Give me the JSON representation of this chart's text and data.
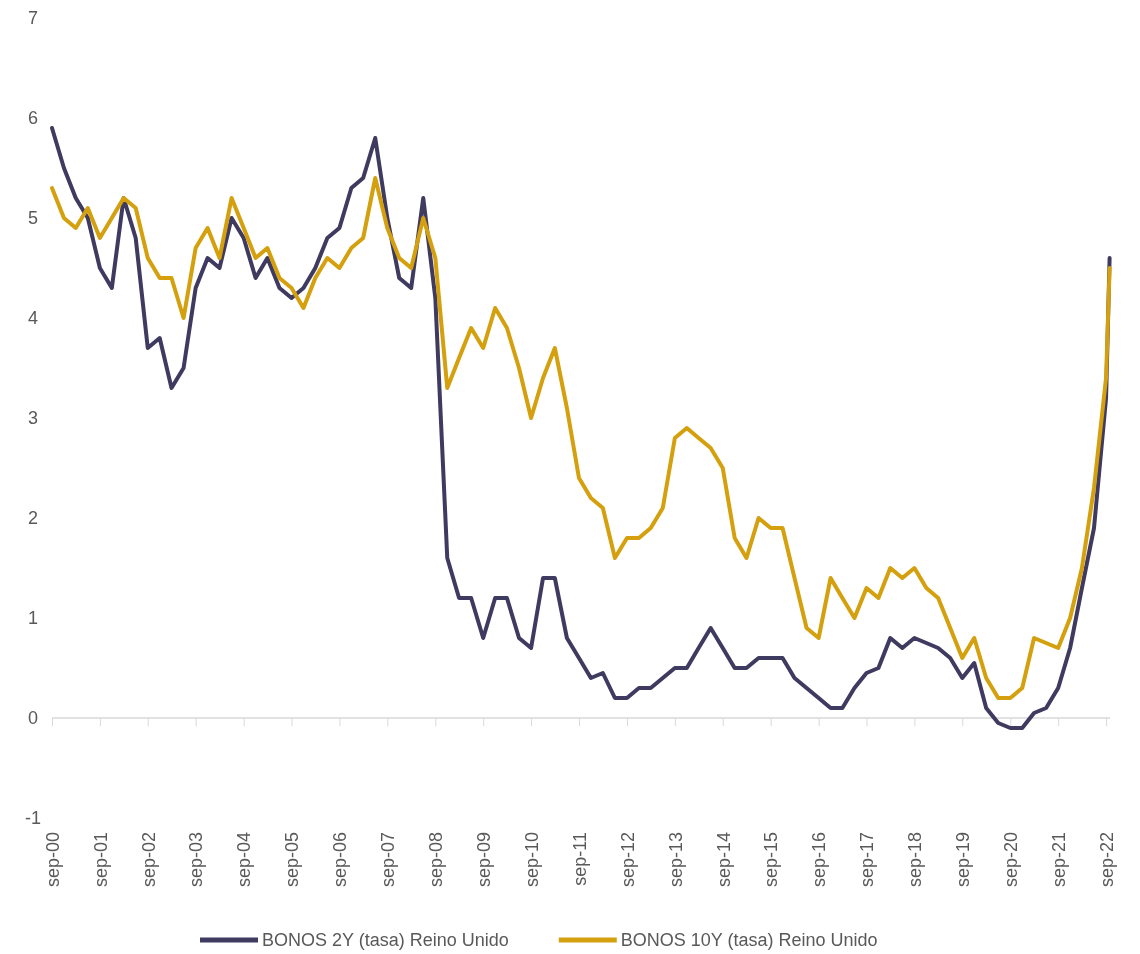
{
  "chart_data": {
    "type": "line",
    "x": [
      "2000-09",
      "2000-12",
      "2001-03",
      "2001-06",
      "2001-09",
      "2001-12",
      "2002-03",
      "2002-06",
      "2002-09",
      "2002-12",
      "2003-03",
      "2003-06",
      "2003-09",
      "2003-12",
      "2004-03",
      "2004-06",
      "2004-09",
      "2004-12",
      "2005-03",
      "2005-06",
      "2005-09",
      "2005-12",
      "2006-03",
      "2006-06",
      "2006-09",
      "2006-12",
      "2007-03",
      "2007-06",
      "2007-09",
      "2007-12",
      "2008-03",
      "2008-06",
      "2008-09",
      "2008-12",
      "2009-03",
      "2009-06",
      "2009-09",
      "2009-12",
      "2010-03",
      "2010-06",
      "2010-09",
      "2010-12",
      "2011-03",
      "2011-06",
      "2011-09",
      "2011-12",
      "2012-03",
      "2012-06",
      "2012-09",
      "2012-12",
      "2013-03",
      "2013-06",
      "2013-09",
      "2013-12",
      "2014-03",
      "2014-06",
      "2014-09",
      "2014-12",
      "2015-03",
      "2015-06",
      "2015-09",
      "2015-12",
      "2016-03",
      "2016-06",
      "2016-09",
      "2016-12",
      "2017-03",
      "2017-06",
      "2017-09",
      "2017-12",
      "2018-03",
      "2018-06",
      "2018-09",
      "2018-12",
      "2019-03",
      "2019-06",
      "2019-09",
      "2019-12",
      "2020-03",
      "2020-06",
      "2020-09",
      "2020-12",
      "2021-03",
      "2021-06",
      "2021-09",
      "2021-12",
      "2022-03",
      "2022-06",
      "2022-09",
      "2022-09-28"
    ],
    "series": [
      {
        "name": "BONOS 2Y (tasa) Reino Unido",
        "color": "#3f3a60",
        "values": [
          5.9,
          5.5,
          5.2,
          5.0,
          4.5,
          4.3,
          5.2,
          4.8,
          3.7,
          3.8,
          3.3,
          3.5,
          4.3,
          4.6,
          4.5,
          5.0,
          4.8,
          4.4,
          4.6,
          4.3,
          4.2,
          4.3,
          4.5,
          4.8,
          4.9,
          5.3,
          5.4,
          5.8,
          5.0,
          4.4,
          4.3,
          5.2,
          4.2,
          1.6,
          1.2,
          1.2,
          0.8,
          1.2,
          1.2,
          0.8,
          0.7,
          1.4,
          1.4,
          0.8,
          0.6,
          0.4,
          0.45,
          0.2,
          0.2,
          0.3,
          0.3,
          0.4,
          0.5,
          0.5,
          0.7,
          0.9,
          0.7,
          0.5,
          0.5,
          0.6,
          0.6,
          0.6,
          0.4,
          0.3,
          0.2,
          0.1,
          0.1,
          0.3,
          0.45,
          0.5,
          0.8,
          0.7,
          0.8,
          0.75,
          0.7,
          0.6,
          0.4,
          0.55,
          0.1,
          -0.05,
          -0.1,
          -0.1,
          0.05,
          0.1,
          0.3,
          0.7,
          1.3,
          1.9,
          3.2,
          4.6
        ]
      },
      {
        "name": "BONOS 10Y (tasa) Reino Unido",
        "color": "#d4a00e",
        "values": [
          5.3,
          5.0,
          4.9,
          5.1,
          4.8,
          5.0,
          5.2,
          5.1,
          4.6,
          4.4,
          4.4,
          4.0,
          4.7,
          4.9,
          4.6,
          5.2,
          4.9,
          4.6,
          4.7,
          4.4,
          4.3,
          4.1,
          4.4,
          4.6,
          4.5,
          4.7,
          4.8,
          5.4,
          4.9,
          4.6,
          4.5,
          5.0,
          4.6,
          3.3,
          3.6,
          3.9,
          3.7,
          4.1,
          3.9,
          3.5,
          3.0,
          3.4,
          3.7,
          3.1,
          2.4,
          2.2,
          2.1,
          1.6,
          1.8,
          1.8,
          1.9,
          2.1,
          2.8,
          2.9,
          2.8,
          2.7,
          2.5,
          1.8,
          1.6,
          2.0,
          1.9,
          1.9,
          1.4,
          0.9,
          0.8,
          1.4,
          1.2,
          1.0,
          1.3,
          1.2,
          1.5,
          1.4,
          1.5,
          1.3,
          1.2,
          0.9,
          0.6,
          0.8,
          0.4,
          0.2,
          0.2,
          0.3,
          0.8,
          0.75,
          0.7,
          1.0,
          1.5,
          2.3,
          3.4,
          4.5
        ]
      }
    ],
    "xlim": [
      "2000-09-01",
      "2022-10-01"
    ],
    "xticks": [
      {
        "value": "2000-09",
        "label": "sep-00"
      },
      {
        "value": "2001-09",
        "label": "sep-01"
      },
      {
        "value": "2002-09",
        "label": "sep-02"
      },
      {
        "value": "2003-09",
        "label": "sep-03"
      },
      {
        "value": "2004-09",
        "label": "sep-04"
      },
      {
        "value": "2005-09",
        "label": "sep-05"
      },
      {
        "value": "2006-09",
        "label": "sep-06"
      },
      {
        "value": "2007-09",
        "label": "sep-07"
      },
      {
        "value": "2008-09",
        "label": "sep-08"
      },
      {
        "value": "2009-09",
        "label": "sep-09"
      },
      {
        "value": "2010-09",
        "label": "sep-10"
      },
      {
        "value": "2011-09",
        "label": "sep-11"
      },
      {
        "value": "2012-09",
        "label": "sep-12"
      },
      {
        "value": "2013-09",
        "label": "sep-13"
      },
      {
        "value": "2014-09",
        "label": "sep-14"
      },
      {
        "value": "2015-09",
        "label": "sep-15"
      },
      {
        "value": "2016-09",
        "label": "sep-16"
      },
      {
        "value": "2017-09",
        "label": "sep-17"
      },
      {
        "value": "2018-09",
        "label": "sep-18"
      },
      {
        "value": "2019-09",
        "label": "sep-19"
      },
      {
        "value": "2020-09",
        "label": "sep-20"
      },
      {
        "value": "2021-09",
        "label": "sep-21"
      },
      {
        "value": "2022-09",
        "label": "sep-22"
      }
    ],
    "ylim": [
      -1,
      7
    ],
    "yticks": [
      -1,
      0,
      1,
      2,
      3,
      4,
      5,
      6,
      7
    ],
    "ref_lines": [
      {
        "axis": "y",
        "value": 0,
        "color": "#d9d9d9"
      }
    ],
    "legend": "bottom",
    "grid": false,
    "line_style": "solid",
    "marker": "none"
  }
}
